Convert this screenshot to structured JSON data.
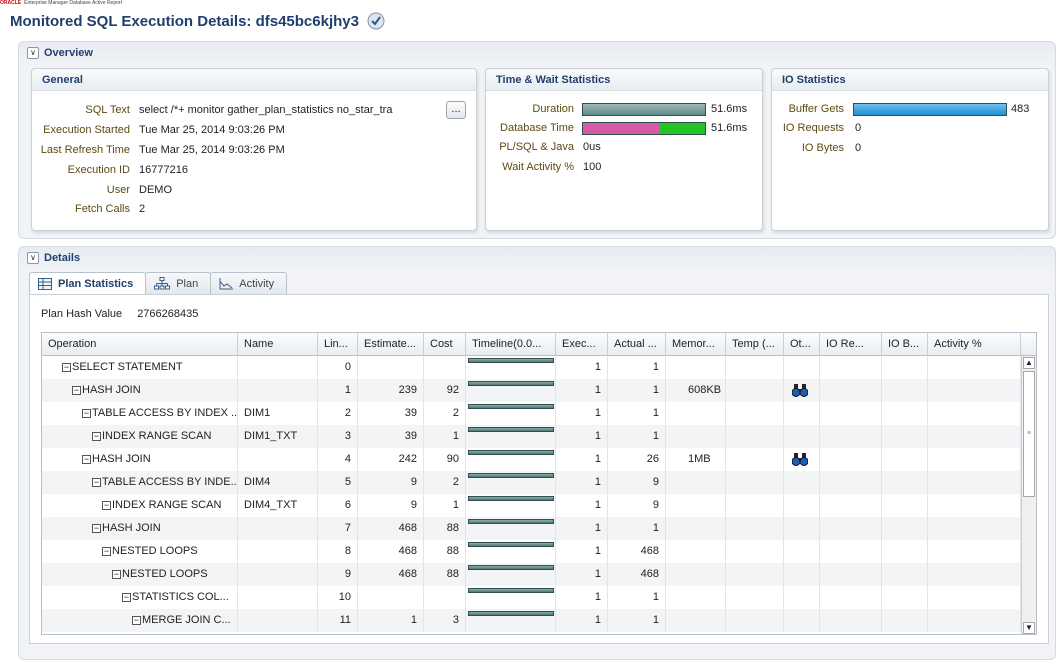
{
  "brand": {
    "logo": "ORACLE",
    "product": "Enterprise Manager Database Active Report"
  },
  "page": {
    "title": "Monitored SQL Execution Details: dfs45bc6kjhy3"
  },
  "overview": {
    "label": "Overview",
    "general": {
      "title": "General",
      "sql_text_label": "SQL Text",
      "sql_text": "select /*+ monitor gather_plan_statistics no_star_tra",
      "more_button": "...",
      "execution_started_label": "Execution Started",
      "execution_started": "Tue Mar 25, 2014 9:03:26 PM",
      "last_refresh_label": "Last Refresh Time",
      "last_refresh": "Tue Mar 25, 2014 9:03:26 PM",
      "execution_id_label": "Execution ID",
      "execution_id": "16777216",
      "user_label": "User",
      "user": "DEMO",
      "fetch_calls_label": "Fetch Calls",
      "fetch_calls": "2"
    },
    "time_wait": {
      "title": "Time & Wait Statistics",
      "duration_label": "Duration",
      "duration": "51.6ms",
      "db_time_label": "Database Time",
      "db_time": "51.6ms",
      "db_time_split": {
        "cpu_fraction": 0.63,
        "wait_fraction": 0.37
      },
      "plsql_label": "PL/SQL & Java",
      "plsql": "0us",
      "wait_activity_label": "Wait Activity %",
      "wait_activity": "100",
      "colors": {
        "duration": "#5f8a87",
        "cpu": "#d65aa8",
        "wait": "#22c422"
      }
    },
    "io": {
      "title": "IO Statistics",
      "buffer_gets_label": "Buffer Gets",
      "buffer_gets": "483",
      "io_requests_label": "IO Requests",
      "io_requests": "0",
      "io_bytes_label": "IO Bytes",
      "io_bytes": "0",
      "colors": {
        "buffer": "#1f8fd1"
      }
    }
  },
  "details": {
    "label": "Details",
    "tabs": [
      {
        "label": "Plan Statistics",
        "icon": "table-icon",
        "active": true
      },
      {
        "label": "Plan",
        "icon": "hierarchy-icon",
        "active": false
      },
      {
        "label": "Activity",
        "icon": "line-chart-icon",
        "active": false
      }
    ],
    "plan_hash_label": "Plan Hash Value",
    "plan_hash_value": "2766268435",
    "columns": [
      "Operation",
      "Name",
      "Lin...",
      "Estimate...",
      "Cost",
      "Timeline(0.0...",
      "Exec...",
      "Actual ...",
      "Memor...",
      "Temp (...",
      "Ot...",
      "IO Re...",
      "IO B...",
      "Activity %"
    ],
    "rows": [
      {
        "operation": "SELECT STATEMENT",
        "depth": 0,
        "name": "",
        "line": "0",
        "estimate": "",
        "cost": "",
        "exec": "1",
        "actual": "1",
        "memory": "",
        "other": false
      },
      {
        "operation": "HASH JOIN",
        "depth": 1,
        "name": "",
        "line": "1",
        "estimate": "239",
        "cost": "92",
        "exec": "1",
        "actual": "1",
        "memory": "608KB",
        "other": true
      },
      {
        "operation": "TABLE ACCESS BY INDEX ...",
        "depth": 2,
        "name": "DIM1",
        "line": "2",
        "estimate": "39",
        "cost": "2",
        "exec": "1",
        "actual": "1",
        "memory": "",
        "other": false
      },
      {
        "operation": "INDEX RANGE SCAN",
        "depth": 3,
        "name": "DIM1_TXT",
        "line": "3",
        "estimate": "39",
        "cost": "1",
        "exec": "1",
        "actual": "1",
        "memory": "",
        "other": false
      },
      {
        "operation": "HASH JOIN",
        "depth": 2,
        "name": "",
        "line": "4",
        "estimate": "242",
        "cost": "90",
        "exec": "1",
        "actual": "26",
        "memory": "1MB",
        "other": true
      },
      {
        "operation": "TABLE ACCESS BY INDE...",
        "depth": 3,
        "name": "DIM4",
        "line": "5",
        "estimate": "9",
        "cost": "2",
        "exec": "1",
        "actual": "9",
        "memory": "",
        "other": false
      },
      {
        "operation": "INDEX RANGE SCAN",
        "depth": 4,
        "name": "DIM4_TXT",
        "line": "6",
        "estimate": "9",
        "cost": "1",
        "exec": "1",
        "actual": "9",
        "memory": "",
        "other": false
      },
      {
        "operation": "HASH JOIN",
        "depth": 3,
        "name": "",
        "line": "7",
        "estimate": "468",
        "cost": "88",
        "exec": "1",
        "actual": "1",
        "memory": "",
        "other": false
      },
      {
        "operation": "NESTED LOOPS",
        "depth": 4,
        "name": "",
        "line": "8",
        "estimate": "468",
        "cost": "88",
        "exec": "1",
        "actual": "468",
        "memory": "",
        "other": false
      },
      {
        "operation": "NESTED LOOPS",
        "depth": 5,
        "name": "",
        "line": "9",
        "estimate": "468",
        "cost": "88",
        "exec": "1",
        "actual": "468",
        "memory": "",
        "other": false
      },
      {
        "operation": "STATISTICS COL...",
        "depth": 6,
        "name": "",
        "line": "10",
        "estimate": "",
        "cost": "",
        "exec": "1",
        "actual": "1",
        "memory": "",
        "other": false
      },
      {
        "operation": "MERGE JOIN C...",
        "depth": 7,
        "name": "",
        "line": "11",
        "estimate": "1",
        "cost": "3",
        "exec": "1",
        "actual": "1",
        "memory": "",
        "other": false
      }
    ]
  }
}
